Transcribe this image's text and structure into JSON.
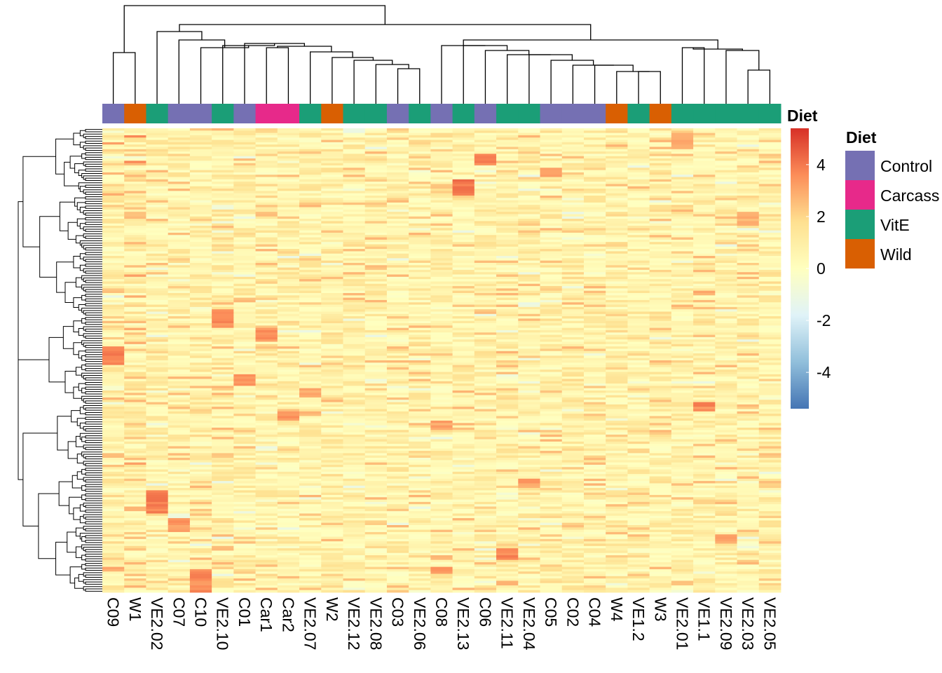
{
  "chart_data": {
    "type": "heatmap",
    "title": "",
    "columns": [
      "C09",
      "W1",
      "VE2.02",
      "C07",
      "C10",
      "VE2.10",
      "C01",
      "Car1",
      "Car2",
      "VE2.07",
      "W2",
      "VE2.12",
      "VE2.08",
      "C03",
      "VE2.06",
      "C08",
      "VE2.13",
      "C06",
      "VE2.11",
      "VE2.04",
      "C05",
      "C02",
      "C04",
      "W4",
      "VE1.2",
      "W3",
      "VE2.01",
      "VE1.1",
      "VE2.09",
      "VE2.03",
      "VE2.05"
    ],
    "diet": [
      "Control",
      "Wild",
      "VitE",
      "Control",
      "Control",
      "VitE",
      "Control",
      "Carcass",
      "Carcass",
      "VitE",
      "Wild",
      "VitE",
      "VitE",
      "Control",
      "VitE",
      "Control",
      "VitE",
      "Control",
      "VitE",
      "VitE",
      "Control",
      "Control",
      "Control",
      "Wild",
      "VitE",
      "Wild",
      "VitE",
      "VitE",
      "VitE",
      "VitE",
      "VitE"
    ],
    "annotation_title": "Diet",
    "color_scale": {
      "title": "Diet",
      "range": [
        -5.4,
        5.4
      ],
      "ticks": [
        4,
        2,
        0,
        -2,
        -4
      ],
      "tick_labels": [
        "4",
        "2",
        "0",
        "-2",
        "-4"
      ],
      "colors": [
        "#4575b4",
        "#91bfdb",
        "#e0f3f8",
        "#ffffbf",
        "#fee090",
        "#fc8d59",
        "#d73027"
      ]
    },
    "legend": {
      "title": "Diet",
      "position": "right",
      "entries": [
        {
          "label": "Control",
          "color": "#7570b3"
        },
        {
          "label": "Carcass",
          "color": "#e7298a"
        },
        {
          "label": "VitE",
          "color": "#1b9e77"
        },
        {
          "label": "Wild",
          "color": "#d95f02"
        }
      ]
    },
    "n_rows": 200,
    "row_dendrogram": true,
    "column_dendrogram": true,
    "hot_spots": [
      {
        "col": "C09",
        "row_from": 0.47,
        "row_to": 0.51,
        "value": 4.2
      },
      {
        "col": "C10",
        "row_from": 0.95,
        "row_to": 1.0,
        "value": 4.0
      },
      {
        "col": "VE2.02",
        "row_from": 0.78,
        "row_to": 0.83,
        "value": 4.3
      },
      {
        "col": "C07",
        "row_from": 0.84,
        "row_to": 0.87,
        "value": 3.8
      },
      {
        "col": "VE2.10",
        "row_from": 0.39,
        "row_to": 0.43,
        "value": 4.0
      },
      {
        "col": "C01",
        "row_from": 0.53,
        "row_to": 0.55,
        "value": 4.0
      },
      {
        "col": "Car1",
        "row_from": 0.43,
        "row_to": 0.46,
        "value": 3.8
      },
      {
        "col": "Car2",
        "row_from": 0.61,
        "row_to": 0.63,
        "value": 3.8
      },
      {
        "col": "VE2.07",
        "row_from": 0.565,
        "row_to": 0.58,
        "value": 3.5
      },
      {
        "col": "VE2.13",
        "row_from": 0.11,
        "row_to": 0.14,
        "value": 4.5
      },
      {
        "col": "C06",
        "row_from": 0.055,
        "row_to": 0.08,
        "value": 4.0
      },
      {
        "col": "C05",
        "row_from": 0.085,
        "row_to": 0.105,
        "value": 3.5
      },
      {
        "col": "C08",
        "row_from": 0.63,
        "row_to": 0.65,
        "value": 3.5
      },
      {
        "col": "C08",
        "row_from": 0.945,
        "row_to": 0.96,
        "value": 3.8
      },
      {
        "col": "VE2.11",
        "row_from": 0.905,
        "row_to": 0.93,
        "value": 4.0
      },
      {
        "col": "VE2.04",
        "row_from": 0.755,
        "row_to": 0.775,
        "value": 3.5
      },
      {
        "col": "VE2.01",
        "row_from": 0.01,
        "row_to": 0.045,
        "value": 3.5
      },
      {
        "col": "VE1.1",
        "row_from": 0.35,
        "row_to": 0.36,
        "value": 3.5
      },
      {
        "col": "VE1.1",
        "row_from": 0.59,
        "row_to": 0.61,
        "value": 4.0
      },
      {
        "col": "VE2.09",
        "row_from": 0.875,
        "row_to": 0.895,
        "value": 3.5
      },
      {
        "col": "VE2.03",
        "row_from": 0.18,
        "row_to": 0.21,
        "value": 3.2
      },
      {
        "col": "VE2.05",
        "row_from": 0.7,
        "row_to": 0.71,
        "value": 3.0
      }
    ]
  }
}
